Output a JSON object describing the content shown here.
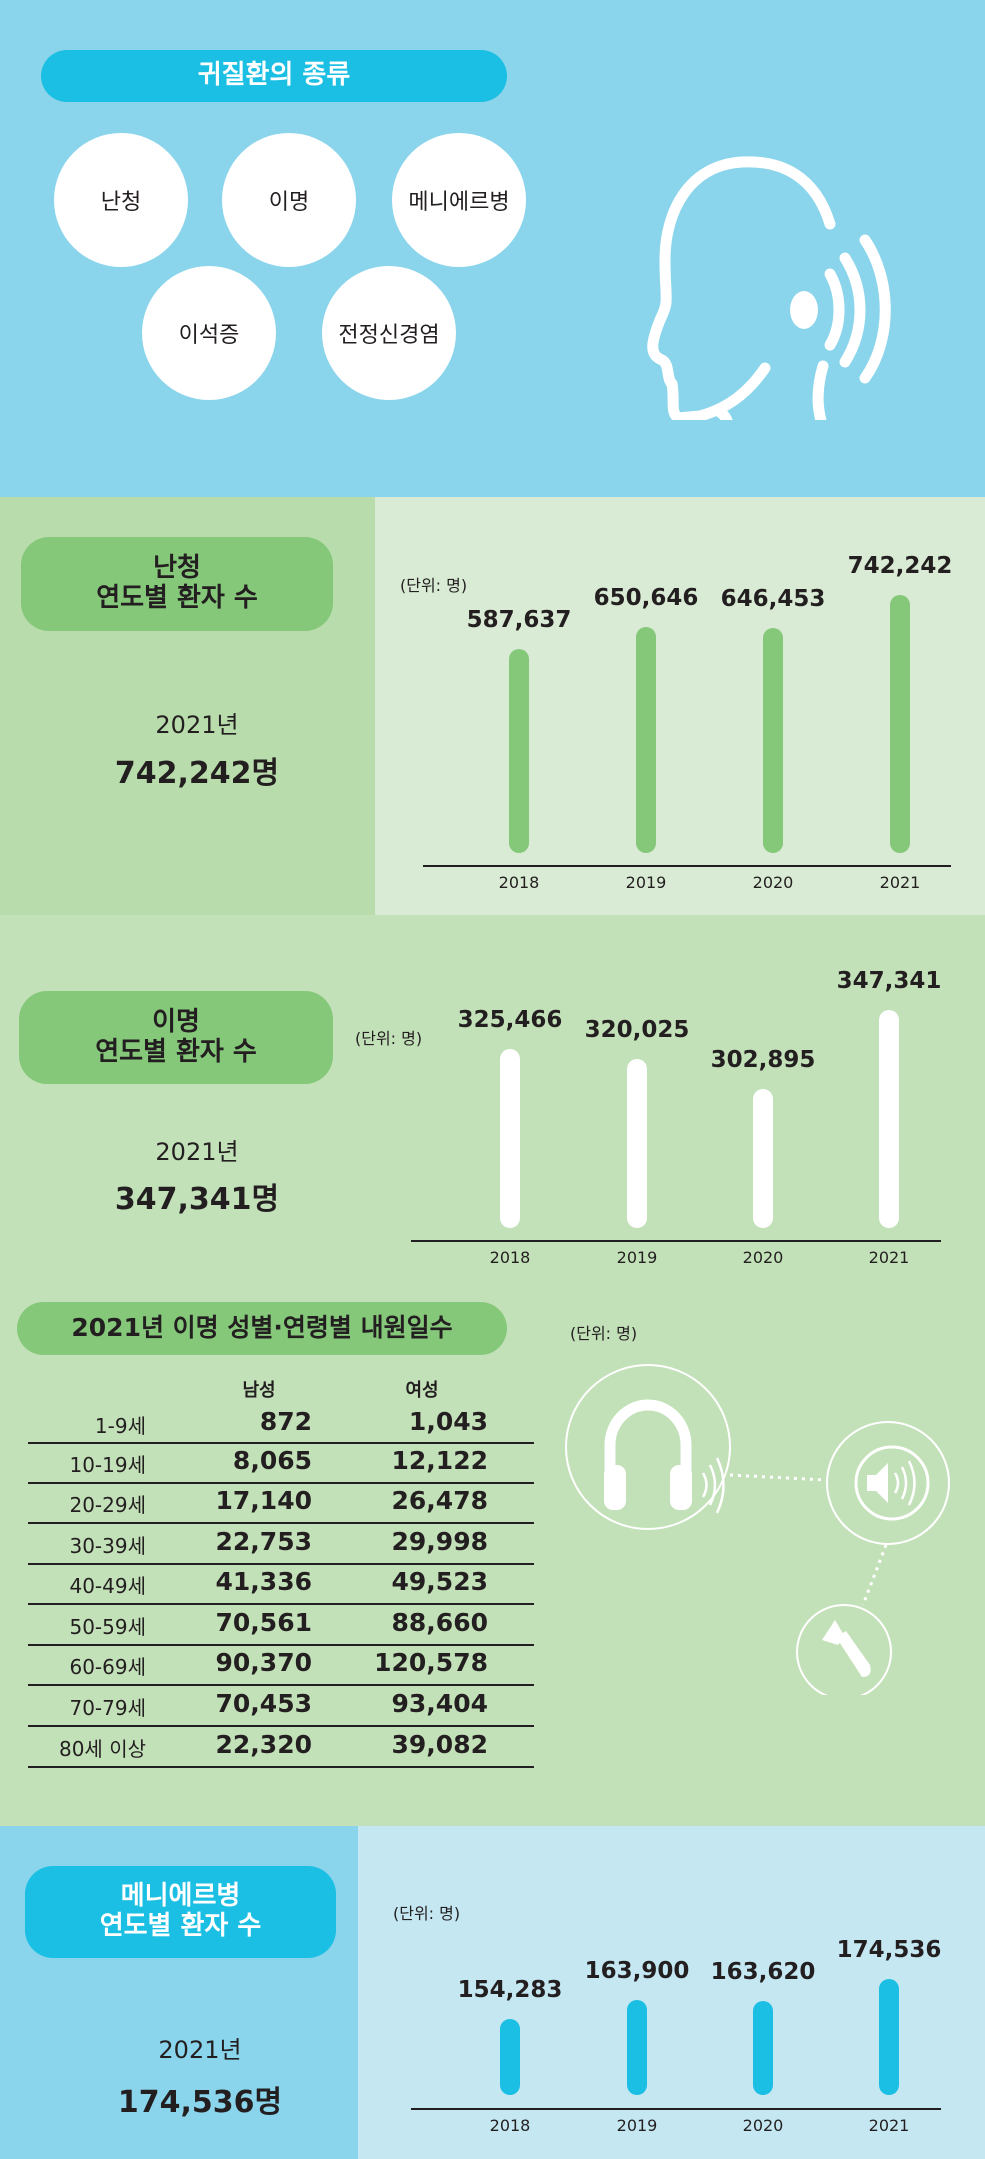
{
  "types": {
    "title": "귀질환의 종류",
    "items": [
      "난청",
      "이명",
      "메니에르병",
      "이석증",
      "전정신경염"
    ]
  },
  "hearing_loss": {
    "title_line1": "난청",
    "title_line2": "연도별 환자 수",
    "year": "2021년",
    "total": "742,242명",
    "unit": "(단위: 명)"
  },
  "tinnitus": {
    "title_line1": "이명",
    "title_line2": "연도별 환자 수",
    "year": "2021년",
    "total": "347,341명",
    "unit": "(단위: 명)"
  },
  "tinnitus_table": {
    "title": "2021년 이명 성별·연령별 내원일수",
    "unit": "(단위: 명)",
    "headers": [
      "남성",
      "여성"
    ],
    "rows": [
      {
        "age": "1-9세",
        "male": "872",
        "female": "1,043"
      },
      {
        "age": "10-19세",
        "male": "8,065",
        "female": "12,122"
      },
      {
        "age": "20-29세",
        "male": "17,140",
        "female": "26,478"
      },
      {
        "age": "30-39세",
        "male": "22,753",
        "female": "29,998"
      },
      {
        "age": "40-49세",
        "male": "41,336",
        "female": "49,523"
      },
      {
        "age": "50-59세",
        "male": "70,561",
        "female": "88,660"
      },
      {
        "age": "60-69세",
        "male": "90,370",
        "female": "120,578"
      },
      {
        "age": "70-79세",
        "male": "70,453",
        "female": "93,404"
      },
      {
        "age": "80세 이상",
        "male": "22,320",
        "female": "39,082"
      }
    ]
  },
  "meniere": {
    "title_line1": "메니에르병",
    "title_line2": "연도별 환자 수",
    "year": "2021년",
    "total": "174,536명",
    "unit": "(단위: 명)"
  },
  "colors": {
    "sky": "#8ad5ec",
    "cyan": "#1bbfe3",
    "green": "#85c87a",
    "white": "#ffffff"
  },
  "chart_data": [
    {
      "type": "bar",
      "title": "난청 연도별 환자 수",
      "ylabel": "(단위: 명)",
      "categories": [
        "2018",
        "2019",
        "2020",
        "2021"
      ],
      "values": [
        587637,
        650646,
        646453,
        742242
      ],
      "labels": [
        "587,637",
        "650,646",
        "646,453",
        "742,242"
      ],
      "ylim": [
        0,
        742242
      ],
      "color": "#85c87a"
    },
    {
      "type": "bar",
      "title": "이명 연도별 환자 수",
      "ylabel": "(단위: 명)",
      "categories": [
        "2018",
        "2019",
        "2020",
        "2021"
      ],
      "values": [
        325466,
        320025,
        302895,
        347341
      ],
      "labels": [
        "325,466",
        "320,025",
        "302,895",
        "347,341"
      ],
      "ylim": [
        224665,
        347341
      ],
      "color": "#ffffff"
    },
    {
      "type": "bar",
      "title": "메니에르병 연도별 환자 수",
      "ylabel": "(단위: 명)",
      "categories": [
        "2018",
        "2019",
        "2020",
        "2021"
      ],
      "values": [
        154283,
        163900,
        163620,
        174536
      ],
      "labels": [
        "154,283",
        "163,900",
        "163,620",
        "174,536"
      ],
      "ylim": [
        115802,
        174536
      ],
      "color": "#1bbfe3"
    }
  ]
}
